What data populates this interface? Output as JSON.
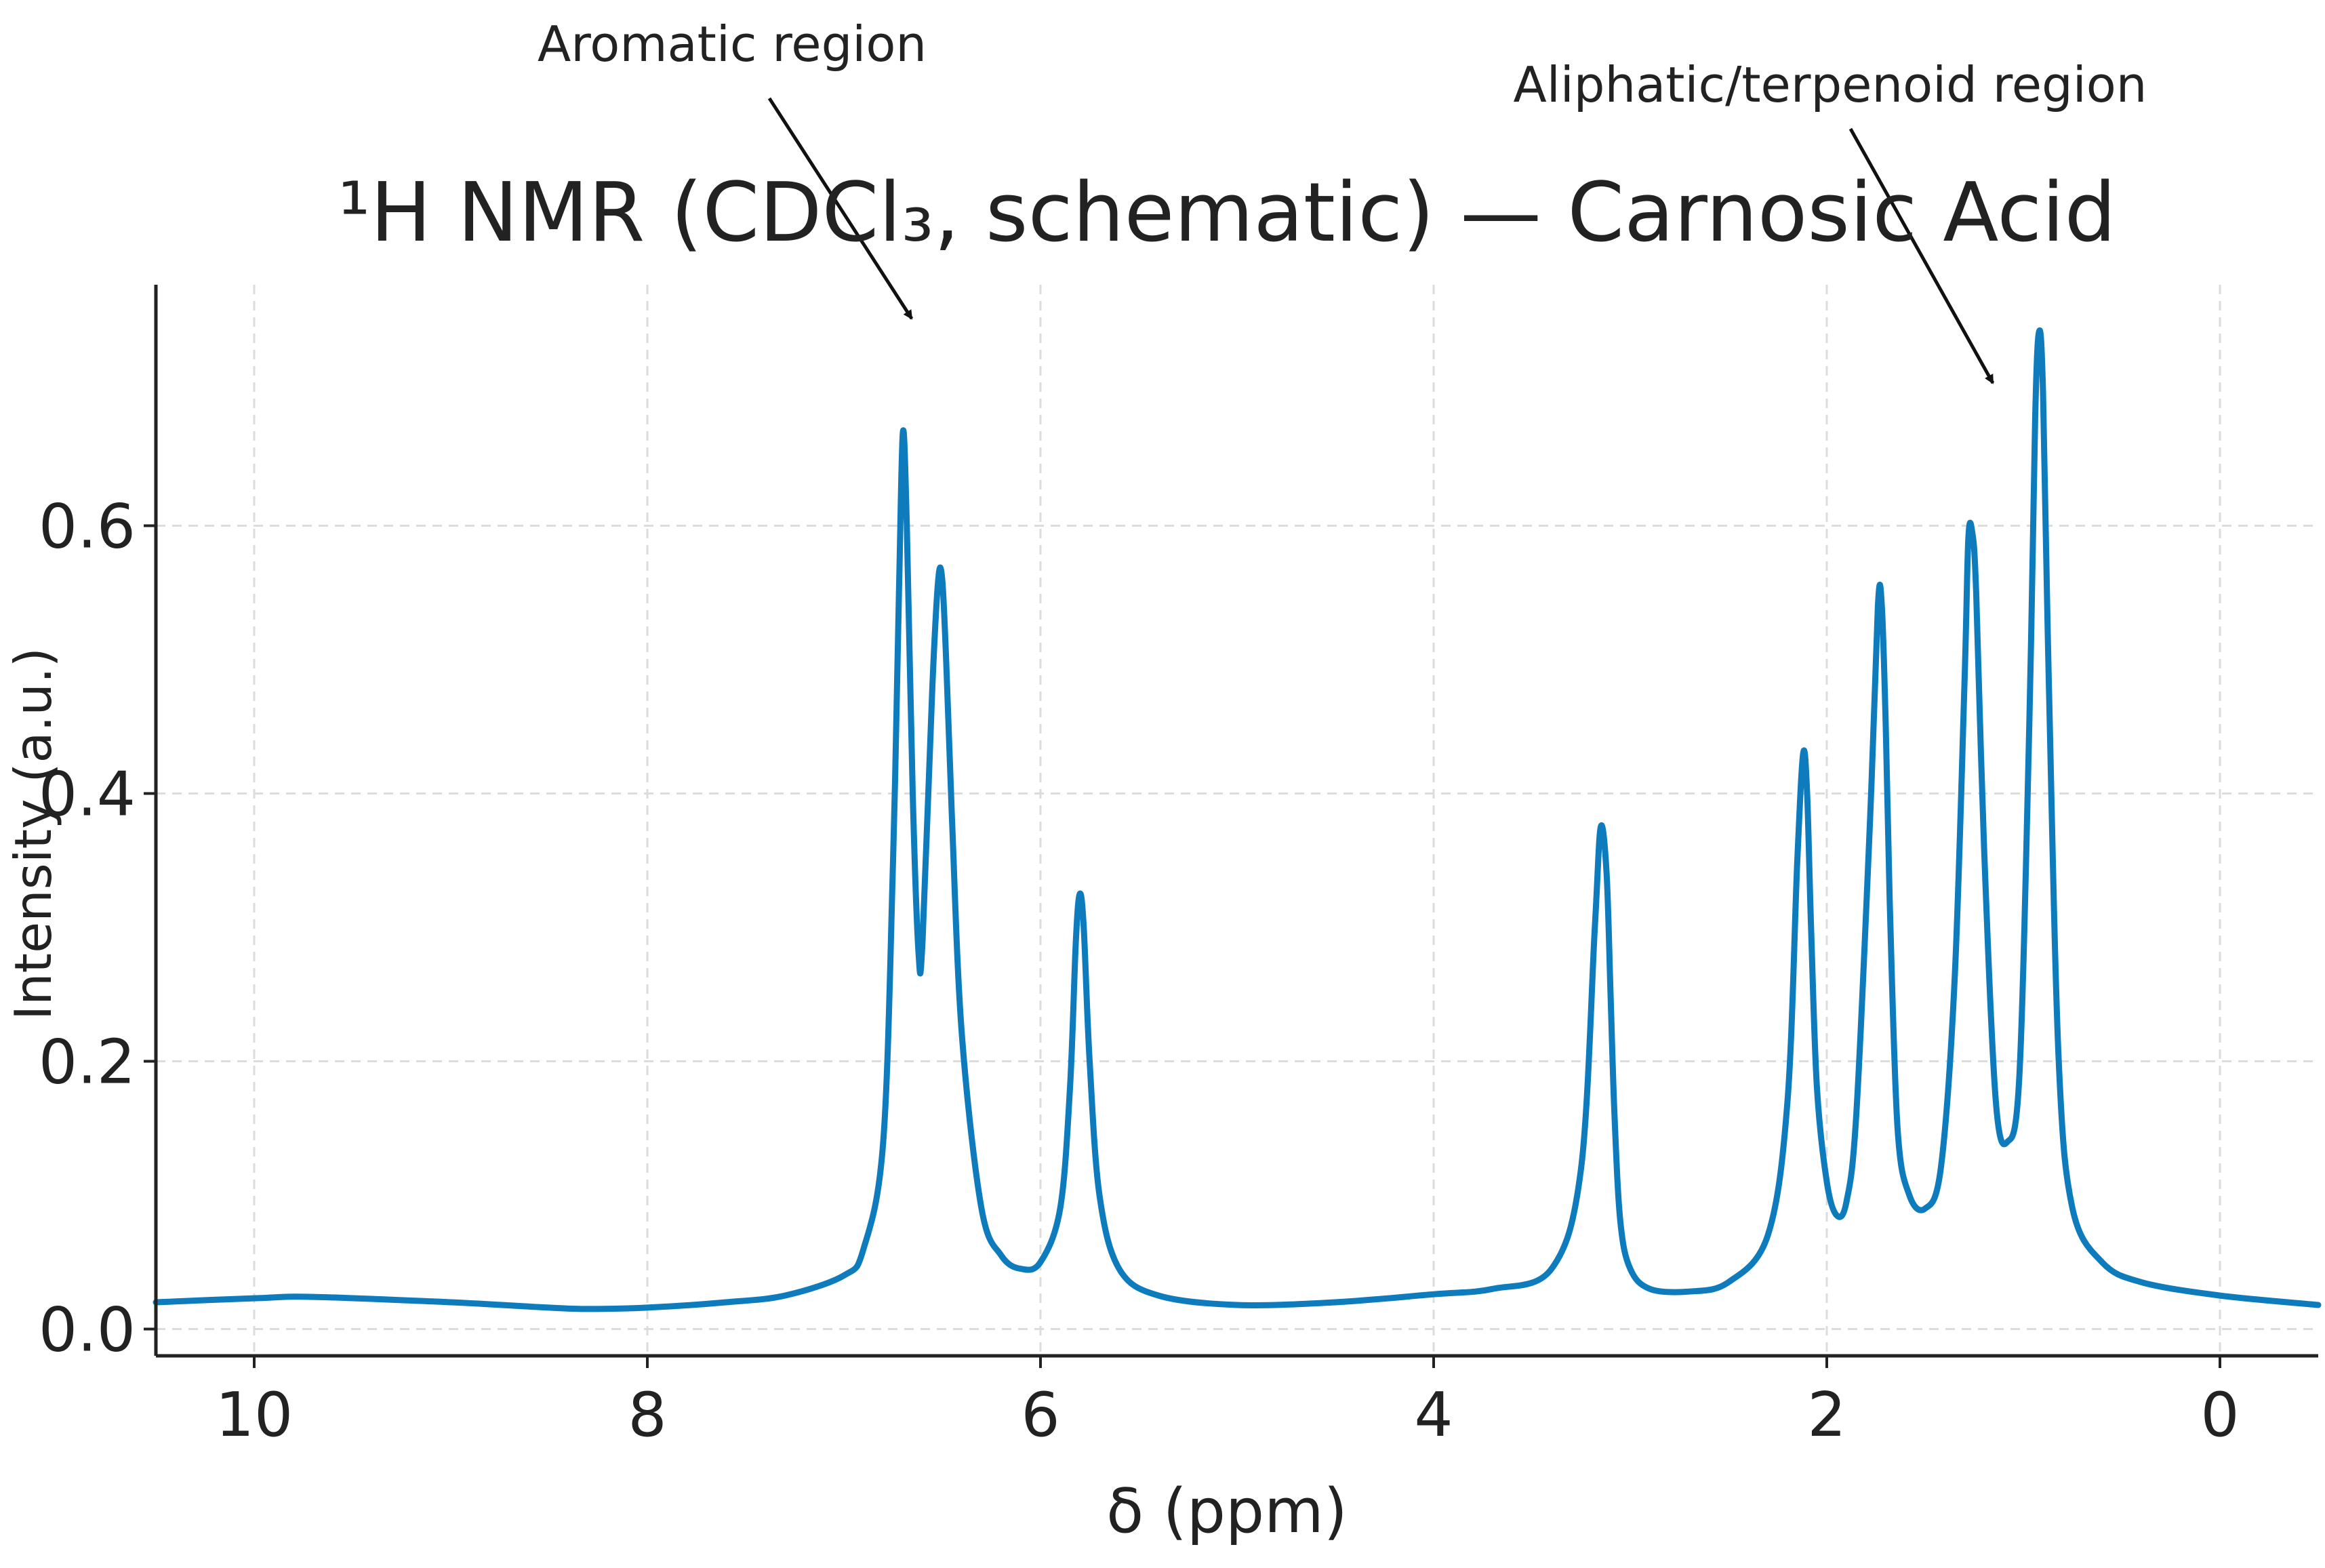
{
  "chart_data": {
    "type": "line",
    "title": "¹H NMR (CDCl₃, schematic) — Carnosic Acid",
    "xlabel": "δ (ppm)",
    "ylabel": "Intensity (a.u.)",
    "xlim": [
      10.5,
      -0.5
    ],
    "ylim": [
      -0.02,
      0.78
    ],
    "x_inverted": true,
    "grid": true,
    "legend": "none",
    "xticks": [
      10,
      8,
      6,
      4,
      2,
      0
    ],
    "xtick_labels": [
      "10",
      "8",
      "6",
      "4",
      "2",
      "0"
    ],
    "yticks": [
      0.0,
      0.2,
      0.4,
      0.6
    ],
    "ytick_labels": [
      "0.0",
      "0.2",
      "0.4",
      "0.6"
    ],
    "series": [
      {
        "color": "#0e7bbd",
        "x": [
          10.5,
          10.0,
          9.7,
          9.0,
          8.5,
          8.3,
          8.0,
          7.6,
          7.3,
          7.0,
          6.9,
          6.8,
          6.75,
          6.72,
          6.7,
          6.68,
          6.65,
          6.62,
          6.6,
          6.55,
          6.52,
          6.5,
          6.48,
          6.45,
          6.4,
          6.3,
          6.2,
          6.1,
          6.0,
          5.9,
          5.85,
          5.82,
          5.8,
          5.78,
          5.75,
          5.7,
          5.6,
          5.4,
          5.0,
          4.5,
          4.0,
          3.7,
          3.4,
          3.25,
          3.18,
          3.15,
          3.12,
          3.1,
          3.08,
          3.05,
          3.0,
          2.9,
          2.7,
          2.5,
          2.3,
          2.2,
          2.15,
          2.12,
          2.1,
          2.08,
          2.05,
          2.0,
          1.95,
          1.9,
          1.85,
          1.78,
          1.74,
          1.72,
          1.7,
          1.68,
          1.64,
          1.58,
          1.5,
          1.42,
          1.35,
          1.3,
          1.28,
          1.26,
          1.24,
          1.2,
          1.14,
          1.08,
          1.02,
          0.97,
          0.94,
          0.92,
          0.9,
          0.87,
          0.82,
          0.75,
          0.6,
          0.4,
          0.0,
          -0.5
        ],
        "y": [
          0.02,
          0.023,
          0.024,
          0.02,
          0.016,
          0.015,
          0.016,
          0.02,
          0.025,
          0.04,
          0.06,
          0.14,
          0.35,
          0.55,
          0.67,
          0.6,
          0.4,
          0.28,
          0.29,
          0.48,
          0.56,
          0.56,
          0.5,
          0.38,
          0.22,
          0.09,
          0.055,
          0.045,
          0.05,
          0.09,
          0.18,
          0.29,
          0.325,
          0.3,
          0.2,
          0.1,
          0.045,
          0.025,
          0.018,
          0.02,
          0.026,
          0.03,
          0.045,
          0.12,
          0.3,
          0.375,
          0.34,
          0.25,
          0.16,
          0.08,
          0.045,
          0.03,
          0.028,
          0.035,
          0.07,
          0.17,
          0.35,
          0.43,
          0.4,
          0.3,
          0.18,
          0.11,
          0.085,
          0.095,
          0.16,
          0.38,
          0.54,
          0.54,
          0.45,
          0.32,
          0.15,
          0.1,
          0.09,
          0.12,
          0.26,
          0.48,
          0.59,
          0.595,
          0.55,
          0.36,
          0.17,
          0.14,
          0.19,
          0.45,
          0.68,
          0.745,
          0.7,
          0.48,
          0.2,
          0.09,
          0.05,
          0.035,
          0.025,
          0.018
        ]
      }
    ],
    "annotations": [
      {
        "text": "Aromatic region",
        "x": 6.7,
        "y": 0.76
      },
      {
        "text": "Aliphatic/terpenoid region",
        "x": 1.15,
        "y": 0.71
      }
    ]
  }
}
